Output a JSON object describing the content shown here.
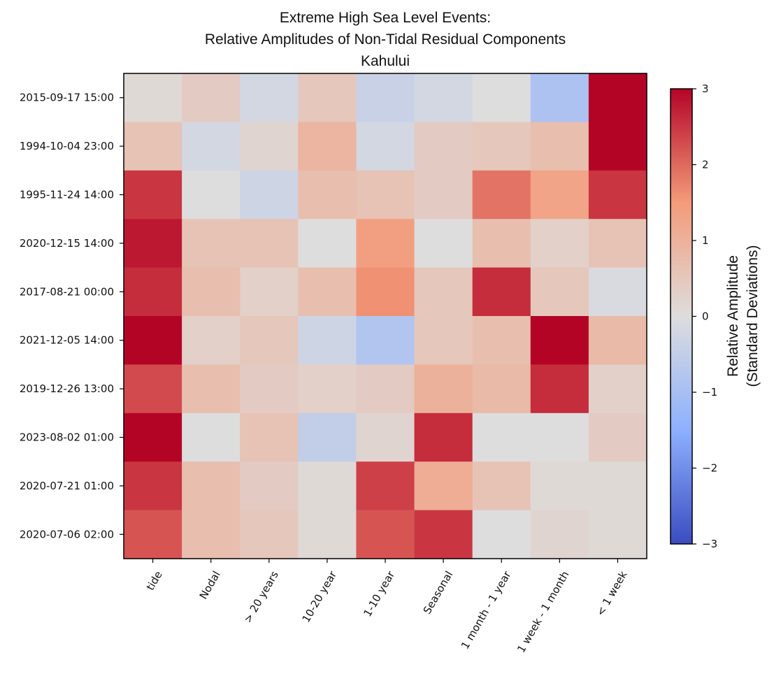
{
  "chart_data": {
    "type": "heatmap",
    "title": [
      "Extreme High Sea Level Events:",
      "Relative Amplitudes of Non-Tidal Residual Components",
      "Kahului"
    ],
    "x_categories": [
      "tide",
      "Nodal",
      "> 20 years",
      "10-20 year",
      "1-10 year",
      "Seasonal",
      "1 month - 1 year",
      "1 week - 1 month",
      "< 1 week"
    ],
    "y_categories": [
      "2015-09-17 15:00",
      "1994-10-04 23:00",
      "1995-11-24 14:00",
      "2020-12-15 14:00",
      "2017-08-21 00:00",
      "2021-12-05 14:00",
      "2019-12-26 13:00",
      "2023-08-02 01:00",
      "2020-07-21 01:00",
      "2020-07-06 02:00"
    ],
    "values": [
      [
        0.1,
        0.4,
        -0.2,
        0.5,
        -0.4,
        -0.2,
        0.0,
        -0.9,
        3.0
      ],
      [
        0.6,
        -0.2,
        0.2,
        0.9,
        -0.2,
        0.4,
        0.5,
        0.7,
        3.0
      ],
      [
        2.5,
        0.0,
        -0.3,
        0.7,
        0.6,
        0.4,
        1.9,
        1.3,
        2.5
      ],
      [
        2.8,
        0.6,
        0.6,
        0.0,
        1.4,
        0.0,
        0.7,
        0.3,
        0.6
      ],
      [
        2.6,
        0.7,
        0.3,
        0.7,
        1.6,
        0.5,
        2.6,
        0.5,
        -0.1
      ],
      [
        3.0,
        0.3,
        0.5,
        -0.3,
        -0.8,
        0.5,
        0.7,
        3.0,
        0.8
      ],
      [
        2.3,
        0.7,
        0.4,
        0.3,
        0.4,
        1.0,
        0.8,
        2.6,
        0.3
      ],
      [
        3.0,
        0.0,
        0.6,
        -0.5,
        0.2,
        2.6,
        0.0,
        0.0,
        0.4
      ],
      [
        2.5,
        0.7,
        0.4,
        0.1,
        2.4,
        1.1,
        0.6,
        0.1,
        0.1
      ],
      [
        2.2,
        0.7,
        0.5,
        0.1,
        2.2,
        2.5,
        0.0,
        0.2,
        0.1
      ]
    ],
    "colormap": "coolwarm",
    "vmin": -3,
    "vmax": 3,
    "colorbar_ticks": [
      "3",
      "2",
      "1",
      "0",
      "−1",
      "−2",
      "−3"
    ],
    "colorbar_label": [
      "Relative Amplitude",
      "(Standard Deviations)"
    ]
  }
}
